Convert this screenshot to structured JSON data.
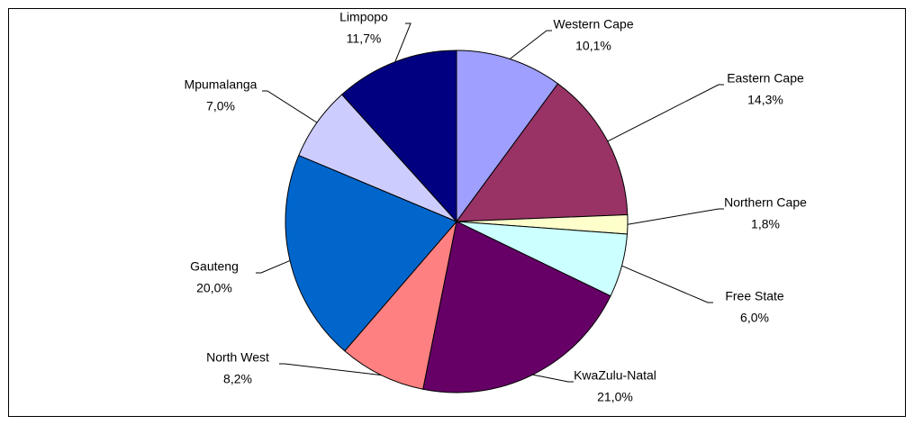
{
  "chart_data": {
    "type": "pie",
    "categories": [
      "Western Cape",
      "Eastern Cape",
      "Northern Cape",
      "Free State",
      "KwaZulu-Natal",
      "North West",
      "Gauteng",
      "Mpumalanga",
      "Limpopo"
    ],
    "values": [
      10.1,
      14.3,
      1.8,
      6.0,
      21.0,
      8.2,
      20.0,
      7.0,
      11.7
    ],
    "value_labels": [
      "10,1%",
      "14,3%",
      "1,8%",
      "6,0%",
      "21,0%",
      "8,2%",
      "20,0%",
      "7,0%",
      "11,7%"
    ],
    "colors": [
      "#9f9fff",
      "#993366",
      "#ffffcc",
      "#ccffff",
      "#660066",
      "#ff8080",
      "#0066cc",
      "#ccccff",
      "#000080"
    ]
  }
}
